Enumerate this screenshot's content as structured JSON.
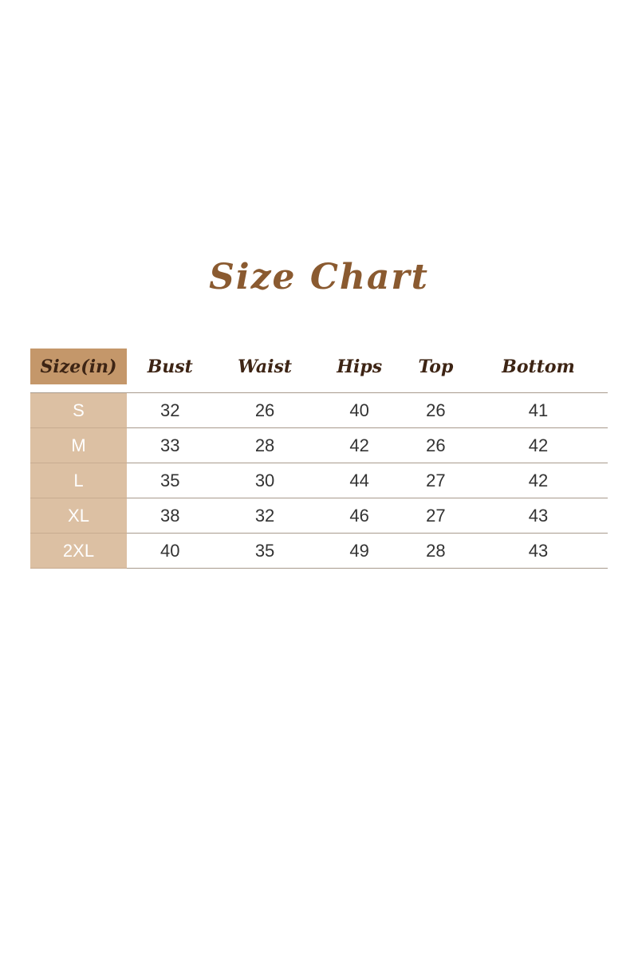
{
  "title": "Size Chart",
  "colors": {
    "title": "#8a5a30",
    "header_size_cell": "#c4976a",
    "size_column": "#dcc0a3",
    "header_text": "#3d2414"
  },
  "headers": [
    "Size(in)",
    "Bust",
    "Waist",
    "Hips",
    "Top",
    "Bottom"
  ],
  "rows": [
    [
      "S",
      "32",
      "26",
      "40",
      "26",
      "41"
    ],
    [
      "M",
      "33",
      "28",
      "42",
      "26",
      "42"
    ],
    [
      "L",
      "35",
      "30",
      "44",
      "27",
      "42"
    ],
    [
      "XL",
      "38",
      "32",
      "46",
      "27",
      "43"
    ],
    [
      "2XL",
      "40",
      "35",
      "49",
      "28",
      "43"
    ]
  ]
}
